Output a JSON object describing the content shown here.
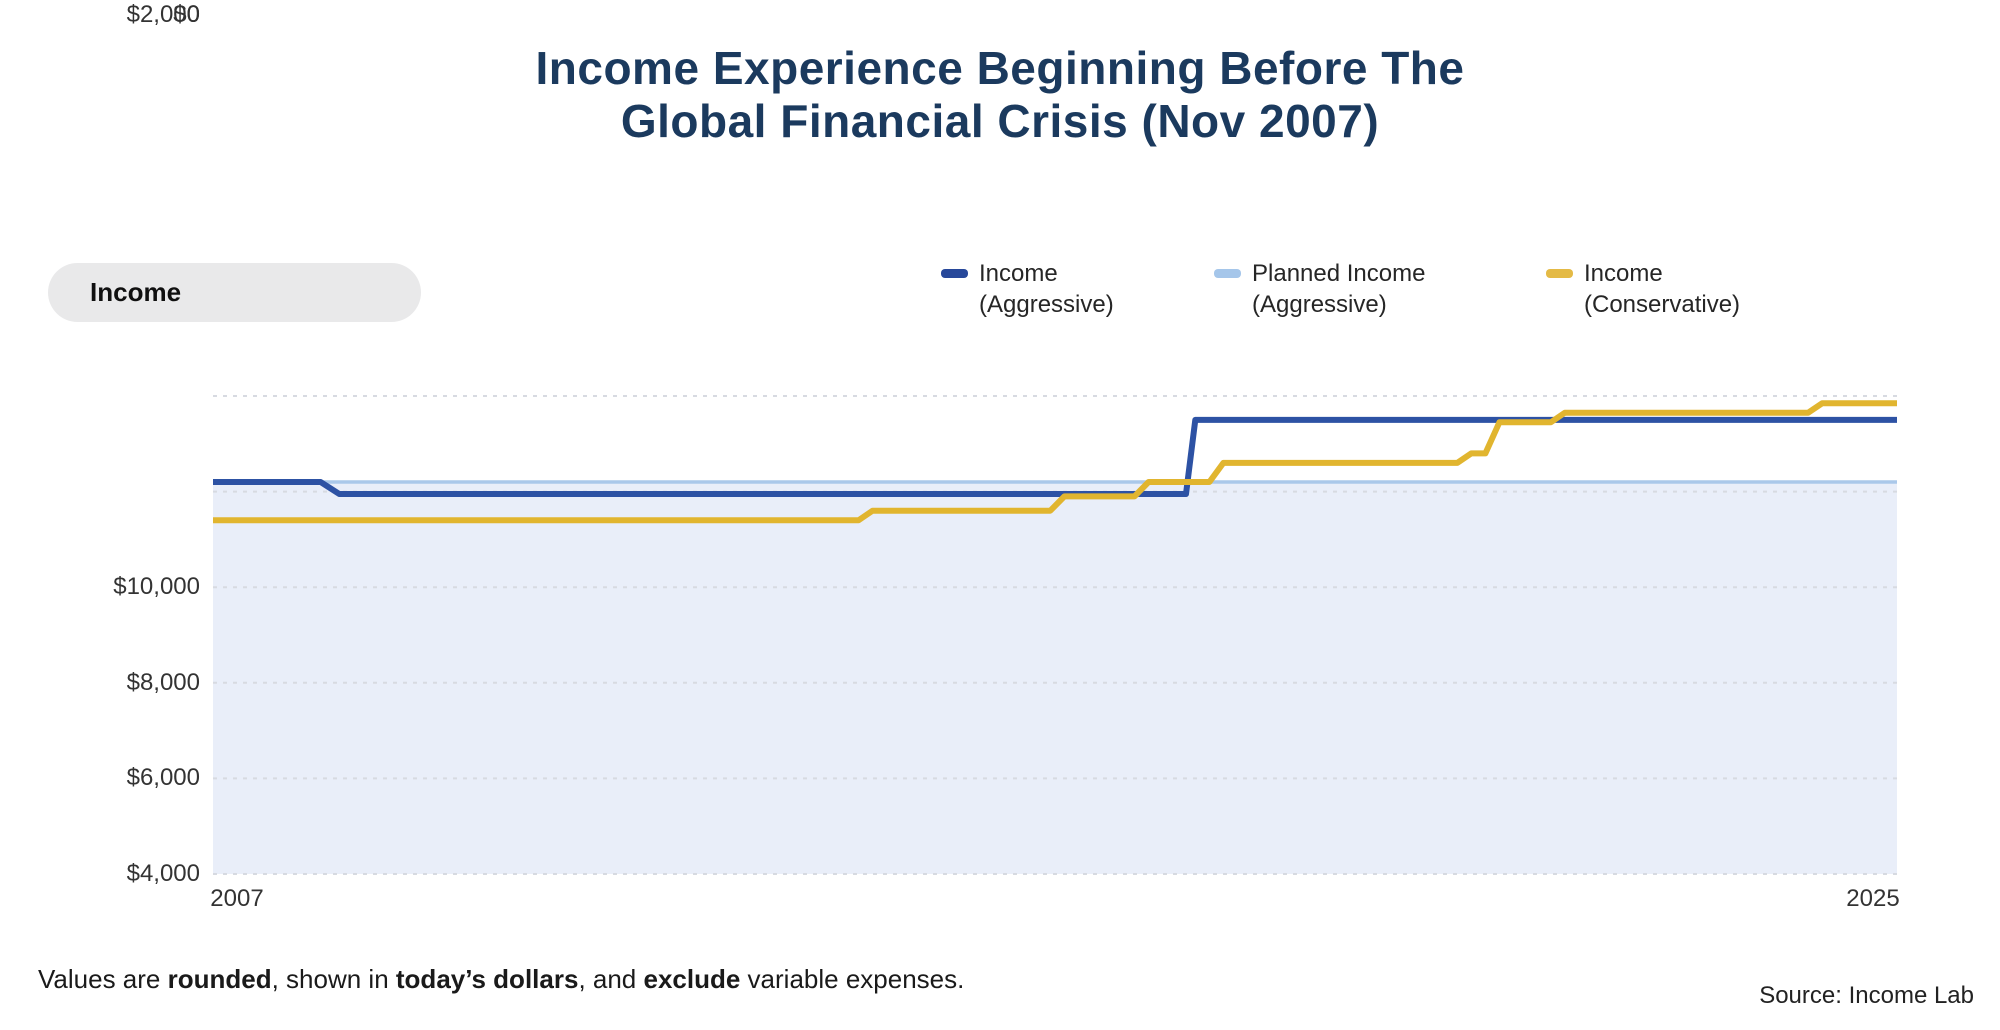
{
  "pill": {
    "label": "Income"
  },
  "legend": {
    "items": [
      {
        "name": "income-aggressive",
        "label": "Income",
        "label2": "(Aggressive)",
        "color": "#27489a"
      },
      {
        "name": "planned-income-aggressive",
        "label": "Planned Income",
        "label2": "(Aggressive)",
        "color": "#a5c6ea"
      },
      {
        "name": "income-conservative",
        "label": "Income",
        "label2": "(Conservative)",
        "color": "#e4ba45"
      }
    ]
  },
  "footer": {
    "segments": [
      {
        "text": "Values are ",
        "bold": false
      },
      {
        "text": "rounded",
        "bold": true
      },
      {
        "text": ", shown in ",
        "bold": false
      },
      {
        "text": "today’s dollars",
        "bold": true
      },
      {
        "text": ", and ",
        "bold": false
      },
      {
        "text": "exclude",
        "bold": true
      },
      {
        "text": " variable expenses.",
        "bold": false
      }
    ],
    "source": "Source: Income Lab"
  },
  "chart_data": {
    "type": "line",
    "title": "Income Experience Beginning Before The\nGlobal Financial Crisis (Nov 2007)",
    "subtitle": "",
    "grid": "horizontal dashed",
    "legend_position": "top-right",
    "x_axis": {
      "label": "",
      "min": 2007,
      "max": 2025,
      "tick_labels": [
        "2007",
        "2025"
      ]
    },
    "y_axis": {
      "label": "",
      "min": 0,
      "max": 10000,
      "ticks": [
        0,
        2000,
        4000,
        6000,
        8000,
        10000
      ],
      "tick_labels": [
        "$0",
        "$2,000",
        "$4,000",
        "$6,000",
        "$8,000",
        "$10,000"
      ]
    },
    "series": [
      {
        "name": "Planned Income (Aggressive)",
        "color": "#aac8ea",
        "fill_below": "#e9eef9",
        "points": [
          [
            2007,
            8200
          ],
          [
            2025,
            8200
          ]
        ]
      },
      {
        "name": "Income (Aggressive)",
        "color": "#2d52a4",
        "points": [
          [
            2007,
            8200
          ],
          [
            2008.15,
            8200
          ],
          [
            2008.35,
            7950
          ],
          [
            2017.4,
            7950
          ],
          [
            2017.5,
            9500
          ],
          [
            2025,
            9500
          ]
        ]
      },
      {
        "name": "Income (Conservative)",
        "color": "#e1b52f",
        "points": [
          [
            2007,
            7400
          ],
          [
            2013.9,
            7400
          ],
          [
            2014.05,
            7600
          ],
          [
            2015.95,
            7600
          ],
          [
            2016.1,
            7900
          ],
          [
            2016.85,
            7900
          ],
          [
            2017.0,
            8200
          ],
          [
            2017.65,
            8200
          ],
          [
            2017.8,
            8600
          ],
          [
            2020.3,
            8600
          ],
          [
            2020.45,
            8800
          ],
          [
            2020.6,
            8800
          ],
          [
            2020.75,
            9450
          ],
          [
            2021.3,
            9450
          ],
          [
            2021.45,
            9650
          ],
          [
            2024.05,
            9650
          ],
          [
            2024.2,
            9850
          ],
          [
            2025,
            9850
          ]
        ]
      }
    ]
  }
}
